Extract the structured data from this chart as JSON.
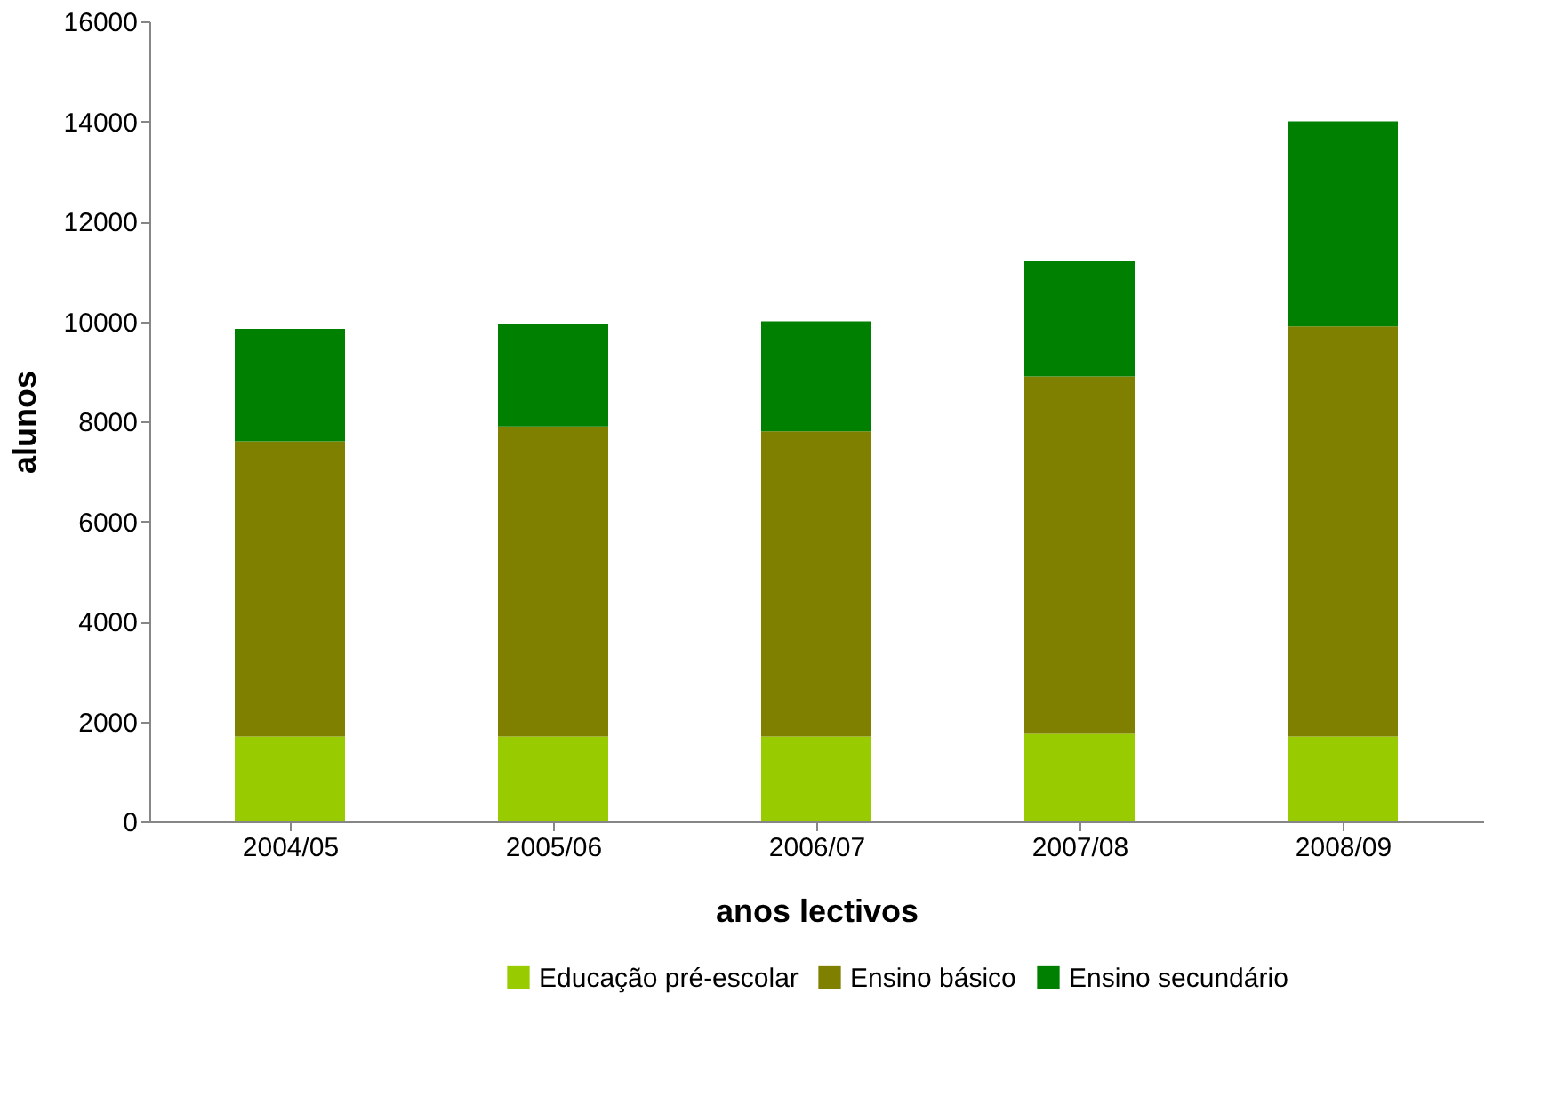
{
  "chart_data": {
    "type": "bar",
    "stacked": true,
    "xlabel": "anos lectivos",
    "ylabel": "alunos",
    "categories": [
      "2004/05",
      "2005/06",
      "2006/07",
      "2007/08",
      "2008/09"
    ],
    "series": [
      {
        "name": "Educação pré-escolar",
        "color": "#99cc00",
        "values": [
          1700,
          1700,
          1700,
          1750,
          1700
        ]
      },
      {
        "name": "Ensino básico",
        "color": "#808000",
        "values": [
          5900,
          6200,
          6100,
          7150,
          8200
        ]
      },
      {
        "name": "Ensino secundário",
        "color": "#008000",
        "values": [
          2250,
          2050,
          2200,
          2300,
          4100
        ]
      }
    ],
    "ylim": [
      0,
      16000
    ],
    "yticks": [
      0,
      2000,
      4000,
      6000,
      8000,
      10000,
      12000,
      14000,
      16000
    ],
    "grid": false,
    "legend": "bottom"
  }
}
